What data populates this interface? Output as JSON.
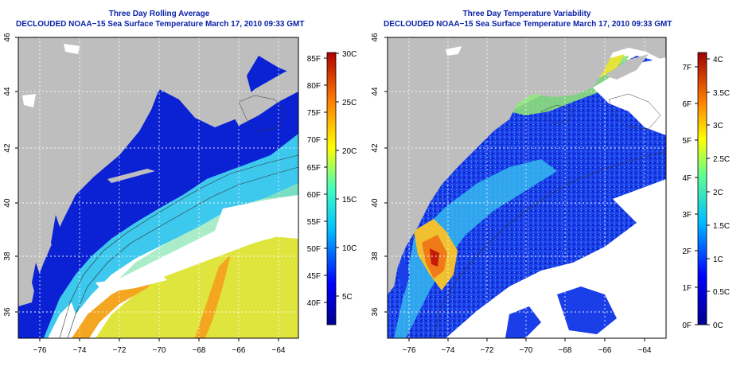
{
  "left_panel": {
    "title_line1": "Three Day Rolling Average",
    "title_line2": "DECLOUDED NOAA−15 Sea Surface Temperature March 17, 2010 09:33 GMT",
    "x_ticks": [
      "−76",
      "−74",
      "−72",
      "−70",
      "−68",
      "−66",
      "−64"
    ],
    "y_ticks": [
      "36",
      "38",
      "40",
      "42",
      "44",
      "46"
    ],
    "colorbar_f": [
      "40F",
      "45F",
      "50F",
      "55F",
      "60F",
      "65F",
      "70F",
      "75F",
      "80F",
      "85F"
    ],
    "colorbar_c": [
      "5C",
      "10C",
      "15C",
      "20C",
      "25C",
      "30C"
    ]
  },
  "right_panel": {
    "title_line1": "Three Day Temperature Variability",
    "title_line2": "DECLOUDED NOAA−15 Sea Surface Temperature March 17, 2010 09:33 GMT",
    "x_ticks": [
      "−76",
      "−74",
      "−72",
      "−70",
      "−68",
      "−66",
      "−64"
    ],
    "y_ticks": [
      "36",
      "38",
      "40",
      "42",
      "44",
      "46"
    ],
    "colorbar_f": [
      "0F",
      "1F",
      "2F",
      "3F",
      "4F",
      "5F",
      "6F",
      "7F"
    ],
    "colorbar_c": [
      "0C",
      "0.5C",
      "1C",
      "1.5C",
      "2C",
      "2.5C",
      "3C",
      "3.5C",
      "4C"
    ]
  },
  "colors": {
    "title": "#0a22a8",
    "land": "#bebebe",
    "ocean_cold": "#0a1fd0",
    "ocean_cool": "#34c7ef",
    "ocean_warm": "#dde53a",
    "ocean_hot": "#f29a1c"
  }
}
